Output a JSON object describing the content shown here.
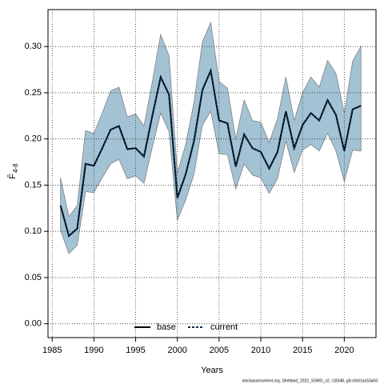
{
  "chart_data": {
    "type": "line",
    "xlabel": "Years",
    "ylabel": "F̄",
    "ylabel_sub": "4-8",
    "footer": "stockassessment.org, Shetland_2022_SSMO_v2, r18348, git:c9c61ac53a0d",
    "x": [
      1986,
      1987,
      1988,
      1989,
      1990,
      1991,
      1992,
      1993,
      1994,
      1995,
      1996,
      1997,
      1998,
      1999,
      2000,
      2001,
      2002,
      2003,
      2004,
      2005,
      2006,
      2007,
      2008,
      2009,
      2010,
      2011,
      2012,
      2013,
      2014,
      2015,
      2016,
      2017,
      2018,
      2019,
      2020,
      2021,
      2022
    ],
    "band": {
      "color": "#a3c3d5",
      "edge": "#808080",
      "upper": [
        0.158,
        0.116,
        0.128,
        0.209,
        0.206,
        0.228,
        0.252,
        0.256,
        0.224,
        0.227,
        0.214,
        0.262,
        0.313,
        0.29,
        0.163,
        0.194,
        0.24,
        0.305,
        0.326,
        0.262,
        0.255,
        0.2,
        0.242,
        0.22,
        0.218,
        0.196,
        0.222,
        0.267,
        0.22,
        0.25,
        0.267,
        0.256,
        0.285,
        0.271,
        0.228,
        0.284,
        0.3
      ],
      "lower": [
        0.101,
        0.076,
        0.085,
        0.143,
        0.142,
        0.158,
        0.173,
        0.178,
        0.157,
        0.16,
        0.152,
        0.191,
        0.228,
        0.208,
        0.112,
        0.134,
        0.162,
        0.215,
        0.23,
        0.184,
        0.183,
        0.146,
        0.173,
        0.161,
        0.158,
        0.141,
        0.157,
        0.198,
        0.164,
        0.188,
        0.194,
        0.187,
        0.206,
        0.187,
        0.154,
        0.188,
        0.187
      ]
    },
    "series": [
      {
        "name": "base",
        "color": "#000000",
        "dash": false,
        "values": [
          0.128,
          0.095,
          0.103,
          0.173,
          0.171,
          0.19,
          0.21,
          0.214,
          0.189,
          0.19,
          0.181,
          0.225,
          0.267,
          0.248,
          0.136,
          0.162,
          0.198,
          0.253,
          0.274,
          0.22,
          0.217,
          0.17,
          0.205,
          0.19,
          0.186,
          0.168,
          0.186,
          0.23,
          0.19,
          0.215,
          0.228,
          0.22,
          0.242,
          0.226,
          0.187,
          0.232,
          0.236
        ]
      },
      {
        "name": "current",
        "color": "#0b2b4c",
        "dash": true,
        "values": [
          0.128,
          0.095,
          0.103,
          0.173,
          0.171,
          0.19,
          0.21,
          0.214,
          0.189,
          0.19,
          0.181,
          0.225,
          0.267,
          0.248,
          0.136,
          0.162,
          0.198,
          0.253,
          0.274,
          0.22,
          0.217,
          0.17,
          0.205,
          0.19,
          0.186,
          0.168,
          0.186,
          0.23,
          0.19,
          0.215,
          0.228,
          0.22,
          0.242,
          0.226,
          0.187,
          0.232,
          0.236
        ]
      }
    ],
    "xlim": [
      1984.5,
      2023.8
    ],
    "ylim": [
      -0.015,
      0.34
    ],
    "xticks": [
      1985,
      1990,
      1995,
      2000,
      2005,
      2010,
      2015,
      2020
    ],
    "yticks": [
      {
        "value": 0,
        "label": "0.00"
      },
      {
        "value": 0.05,
        "label": "0.05"
      },
      {
        "value": 0.1,
        "label": "0.10"
      },
      {
        "value": 0.15,
        "label": "0.15"
      },
      {
        "value": 0.2,
        "label": "0.20"
      },
      {
        "value": 0.25,
        "label": "0.25"
      },
      {
        "value": 0.3,
        "label": "0.30"
      }
    ],
    "grid": true,
    "legend": "bottom"
  }
}
